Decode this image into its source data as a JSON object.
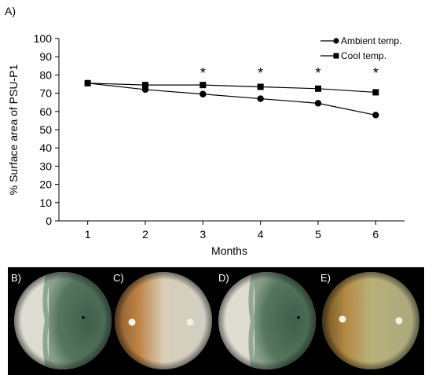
{
  "figure": {
    "panel_label_a": "A)",
    "photo_labels": [
      "B)",
      "C)",
      "D)",
      "E)"
    ],
    "colors": {
      "background": "#ffffff",
      "photo_strip": "#000000",
      "mold_green": "#4f6f5a",
      "mold_white": "#dcdcd2",
      "agar_orange": "#b87a3c",
      "agar_grey": "#cfcfc6",
      "agar_yellow": "#b9b07a"
    }
  },
  "chart_data": {
    "type": "line",
    "title": "",
    "xlabel": "Months",
    "ylabel": "% Surface area of PSU-P1",
    "x": [
      1,
      2,
      3,
      4,
      5,
      6
    ],
    "xticks": [
      "1",
      "2",
      "3",
      "4",
      "5",
      "6"
    ],
    "ylim": [
      0,
      100
    ],
    "yticks": [
      "0",
      "10",
      "20",
      "30",
      "40",
      "50",
      "60",
      "70",
      "80",
      "90",
      "100"
    ],
    "grid": false,
    "legend_position": "top-right",
    "series": [
      {
        "name": "Ambient temp.",
        "marker": "circle",
        "values": [
          75.5,
          72,
          69.5,
          67,
          64.5,
          58
        ]
      },
      {
        "name": "Cool temp.",
        "marker": "square",
        "values": [
          75.5,
          74.5,
          74.5,
          73.5,
          72.5,
          70.5
        ]
      }
    ],
    "significance_marks": [
      {
        "x": 3,
        "label": "*"
      },
      {
        "x": 4,
        "label": "*"
      },
      {
        "x": 5,
        "label": "*"
      },
      {
        "x": 6,
        "label": "*"
      }
    ]
  }
}
